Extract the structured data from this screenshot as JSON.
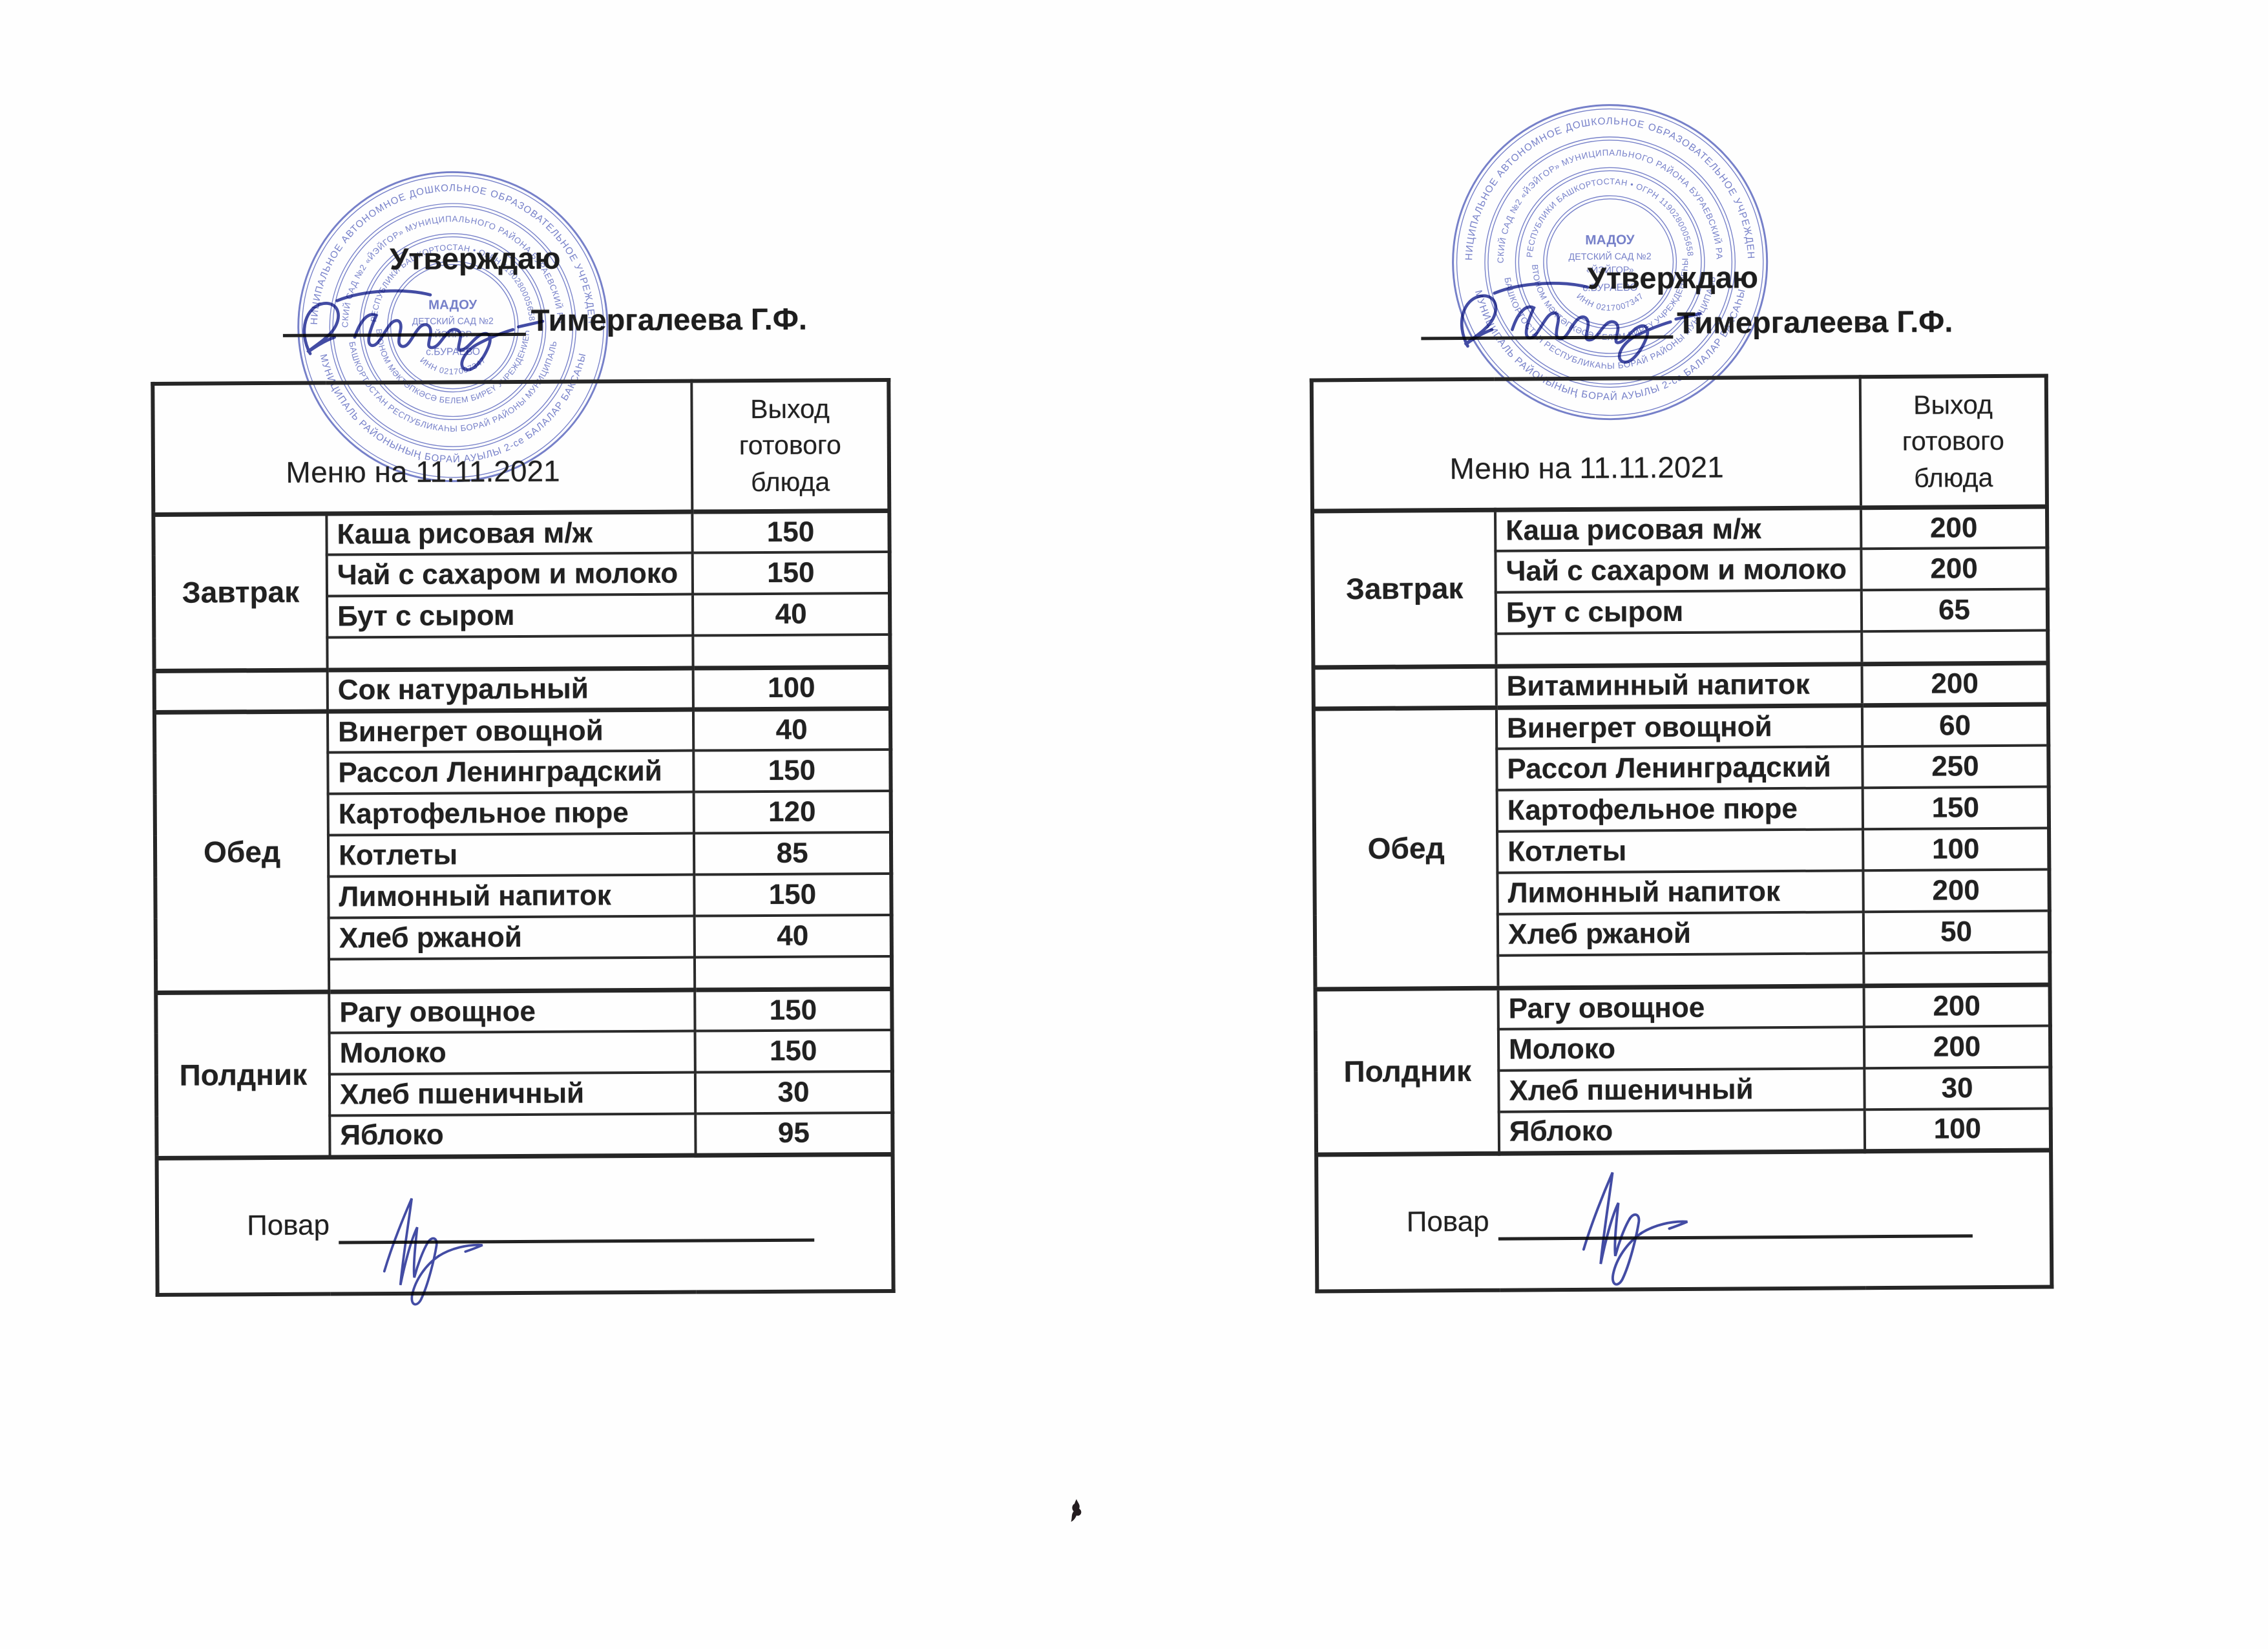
{
  "document": {
    "approve_label": "Утверждаю",
    "approver_name": "Тимергалеева Г.Ф.",
    "menu_title": "Меню на 11.11.2021",
    "output_header": "Выход готового блюда",
    "cook_label": "Повар"
  },
  "stamp": {
    "color": "#5360bb",
    "arcs": {
      "outer_top": "МУНИЦИПАЛЬНОЕ АВТОНОМНОЕ ДОШКОЛЬНОЕ ОБРАЗОВАТЕЛЬНОЕ УЧРЕЖДЕНИЕ",
      "outer_bottom": "МУНИЦИПАЛЬ РАЙОНЫНЫҢ БОРАЙ АУЫЛЫ 2-се БАЛАЛАР БАКСАҺЫ",
      "middle_top": "ДЕТСКИЙ САД №2 «ЙЭЙГОР» МУНИЦИПАЛЬНОГО РАЙОНА БУРАЕВСКИЙ РАЙОН",
      "middle_bottom": "БАШКОРТОСТАН РЕСПУБЛИКАҺЫ БОРАЙ РАЙОНЫ МУНИЦИПАЛЬ",
      "inner_top": "РЕСПУБЛИКИ БАШКОРТОСТАН • ОГРН 1190280005658",
      "inner_bottom": "АВТОНОМ МӘКТӘПКӘСӘ БЕЛЕМ БИРЕҮ УЧРЕЖДЕНИЕҺЫ",
      "inn": "ИНН 0217007347"
    },
    "center_lines": [
      "МАДОУ",
      "ДЕТСКИЙ САД №2",
      "«ЙЭЙГОР»",
      "с.БУРАЕВО"
    ]
  },
  "menus": [
    {
      "id": "left",
      "sections": [
        {
          "category": "Завтрак",
          "rows": [
            {
              "dish": "Каша рисовая м/ж",
              "output": "150"
            },
            {
              "dish": "Чай с сахаром и молоко",
              "output": "150"
            },
            {
              "dish": "Бут с сыром",
              "output": "40"
            },
            {
              "dish": "",
              "output": ""
            }
          ]
        },
        {
          "category": "",
          "rows": [
            {
              "dish": "Сок натуральный",
              "output": "100"
            }
          ]
        },
        {
          "category": "Обед",
          "rows": [
            {
              "dish": "Винегрет овощной",
              "output": "40"
            },
            {
              "dish": "Рассол Ленинградский",
              "output": "150"
            },
            {
              "dish": "Картофельное пюре",
              "output": "120"
            },
            {
              "dish": "Котлеты",
              "output": "85"
            },
            {
              "dish": "Лимонный напиток",
              "output": "150"
            },
            {
              "dish": "Хлеб ржаной",
              "output": "40"
            },
            {
              "dish": "",
              "output": ""
            }
          ]
        },
        {
          "category": "Полдник",
          "rows": [
            {
              "dish": "Рагу овощное",
              "output": "150"
            },
            {
              "dish": "Молоко",
              "output": "150"
            },
            {
              "dish": "Хлеб пшеничный",
              "output": "30"
            },
            {
              "dish": "Яблоко",
              "output": "95"
            }
          ]
        }
      ]
    },
    {
      "id": "right",
      "sections": [
        {
          "category": "Завтрак",
          "rows": [
            {
              "dish": "Каша рисовая м/ж",
              "output": "200"
            },
            {
              "dish": "Чай с сахаром и молоко",
              "output": "200"
            },
            {
              "dish": "Бут с сыром",
              "output": "65"
            },
            {
              "dish": "",
              "output": ""
            }
          ]
        },
        {
          "category": "",
          "rows": [
            {
              "dish": "Витаминный напиток",
              "output": "200"
            }
          ]
        },
        {
          "category": "Обед",
          "rows": [
            {
              "dish": "Винегрет овощной",
              "output": "60"
            },
            {
              "dish": "Рассол Ленинградский",
              "output": "250"
            },
            {
              "dish": "Картофельное пюре",
              "output": "150"
            },
            {
              "dish": "Котлеты",
              "output": "100"
            },
            {
              "dish": "Лимонный напиток",
              "output": "200"
            },
            {
              "dish": "Хлеб ржаной",
              "output": "50"
            },
            {
              "dish": "",
              "output": ""
            }
          ]
        },
        {
          "category": "Полдник",
          "rows": [
            {
              "dish": "Рагу овощное",
              "output": "200"
            },
            {
              "dish": "Молоко",
              "output": "200"
            },
            {
              "dish": "Хлеб пшеничный",
              "output": "30"
            },
            {
              "dish": "Яблоко",
              "output": "100"
            }
          ]
        }
      ]
    }
  ]
}
